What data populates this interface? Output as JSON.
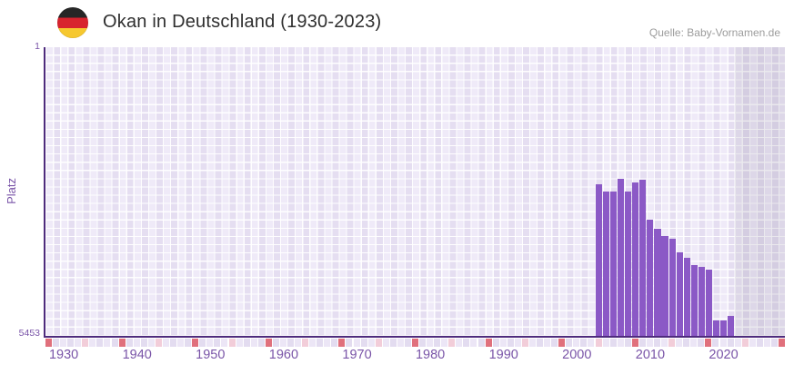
{
  "header": {
    "title": "Okan in Deutschland (1930-2023)",
    "source": "Quelle: Baby-Vornamen.de"
  },
  "flag": {
    "name": "germany-flag",
    "colors": [
      "#262626",
      "#d8232e",
      "#f6c82f"
    ]
  },
  "chart_data": {
    "type": "bar",
    "title": "Okan in Deutschland (1930-2023)",
    "xlabel": "",
    "ylabel": "Platz",
    "y_axis": {
      "label": "Platz",
      "tick_top": "1",
      "tick_bottom": "5453",
      "min": 1,
      "max": 5453,
      "inverted": true
    },
    "x_axis": {
      "tick_labels": [
        "1930",
        "1940",
        "1950",
        "1960",
        "1970",
        "1980",
        "1990",
        "2000",
        "2010",
        "2020"
      ],
      "range_start": 1928,
      "range_end": 2028
    },
    "bar_color": "#8b59c6",
    "series": [
      {
        "name": "Okan",
        "points": [
          {
            "year": 2003,
            "rank": 2595
          },
          {
            "year": 2004,
            "rank": 2725
          },
          {
            "year": 2005,
            "rank": 2725
          },
          {
            "year": 2006,
            "rank": 2480
          },
          {
            "year": 2007,
            "rank": 2720
          },
          {
            "year": 2008,
            "rank": 2555
          },
          {
            "year": 2009,
            "rank": 2510
          },
          {
            "year": 2010,
            "rank": 3260
          },
          {
            "year": 2011,
            "rank": 3425
          },
          {
            "year": 2012,
            "rank": 3565
          },
          {
            "year": 2013,
            "rank": 3610
          },
          {
            "year": 2014,
            "rank": 3870
          },
          {
            "year": 2015,
            "rank": 3975
          },
          {
            "year": 2016,
            "rank": 4110
          },
          {
            "year": 2017,
            "rank": 4155
          },
          {
            "year": 2018,
            "rank": 4195
          },
          {
            "year": 2019,
            "rank": 5160
          },
          {
            "year": 2020,
            "rank": 5160
          },
          {
            "year": 2021,
            "rank": 5080
          }
        ]
      }
    ],
    "shaded_region": {
      "from_year": 2022,
      "to_year": 2028
    },
    "timeline_strip": {
      "start_year": 1928,
      "cells": 101,
      "red_interval": 10,
      "red_phase": 0,
      "pink_phase": 5,
      "red_color": "#e0707c",
      "pink_color": "#f2cdd9",
      "base_colors": [
        "#ece6f6",
        "#e3dcf0"
      ]
    },
    "legend": "none",
    "grid": "checkered-tiles"
  }
}
